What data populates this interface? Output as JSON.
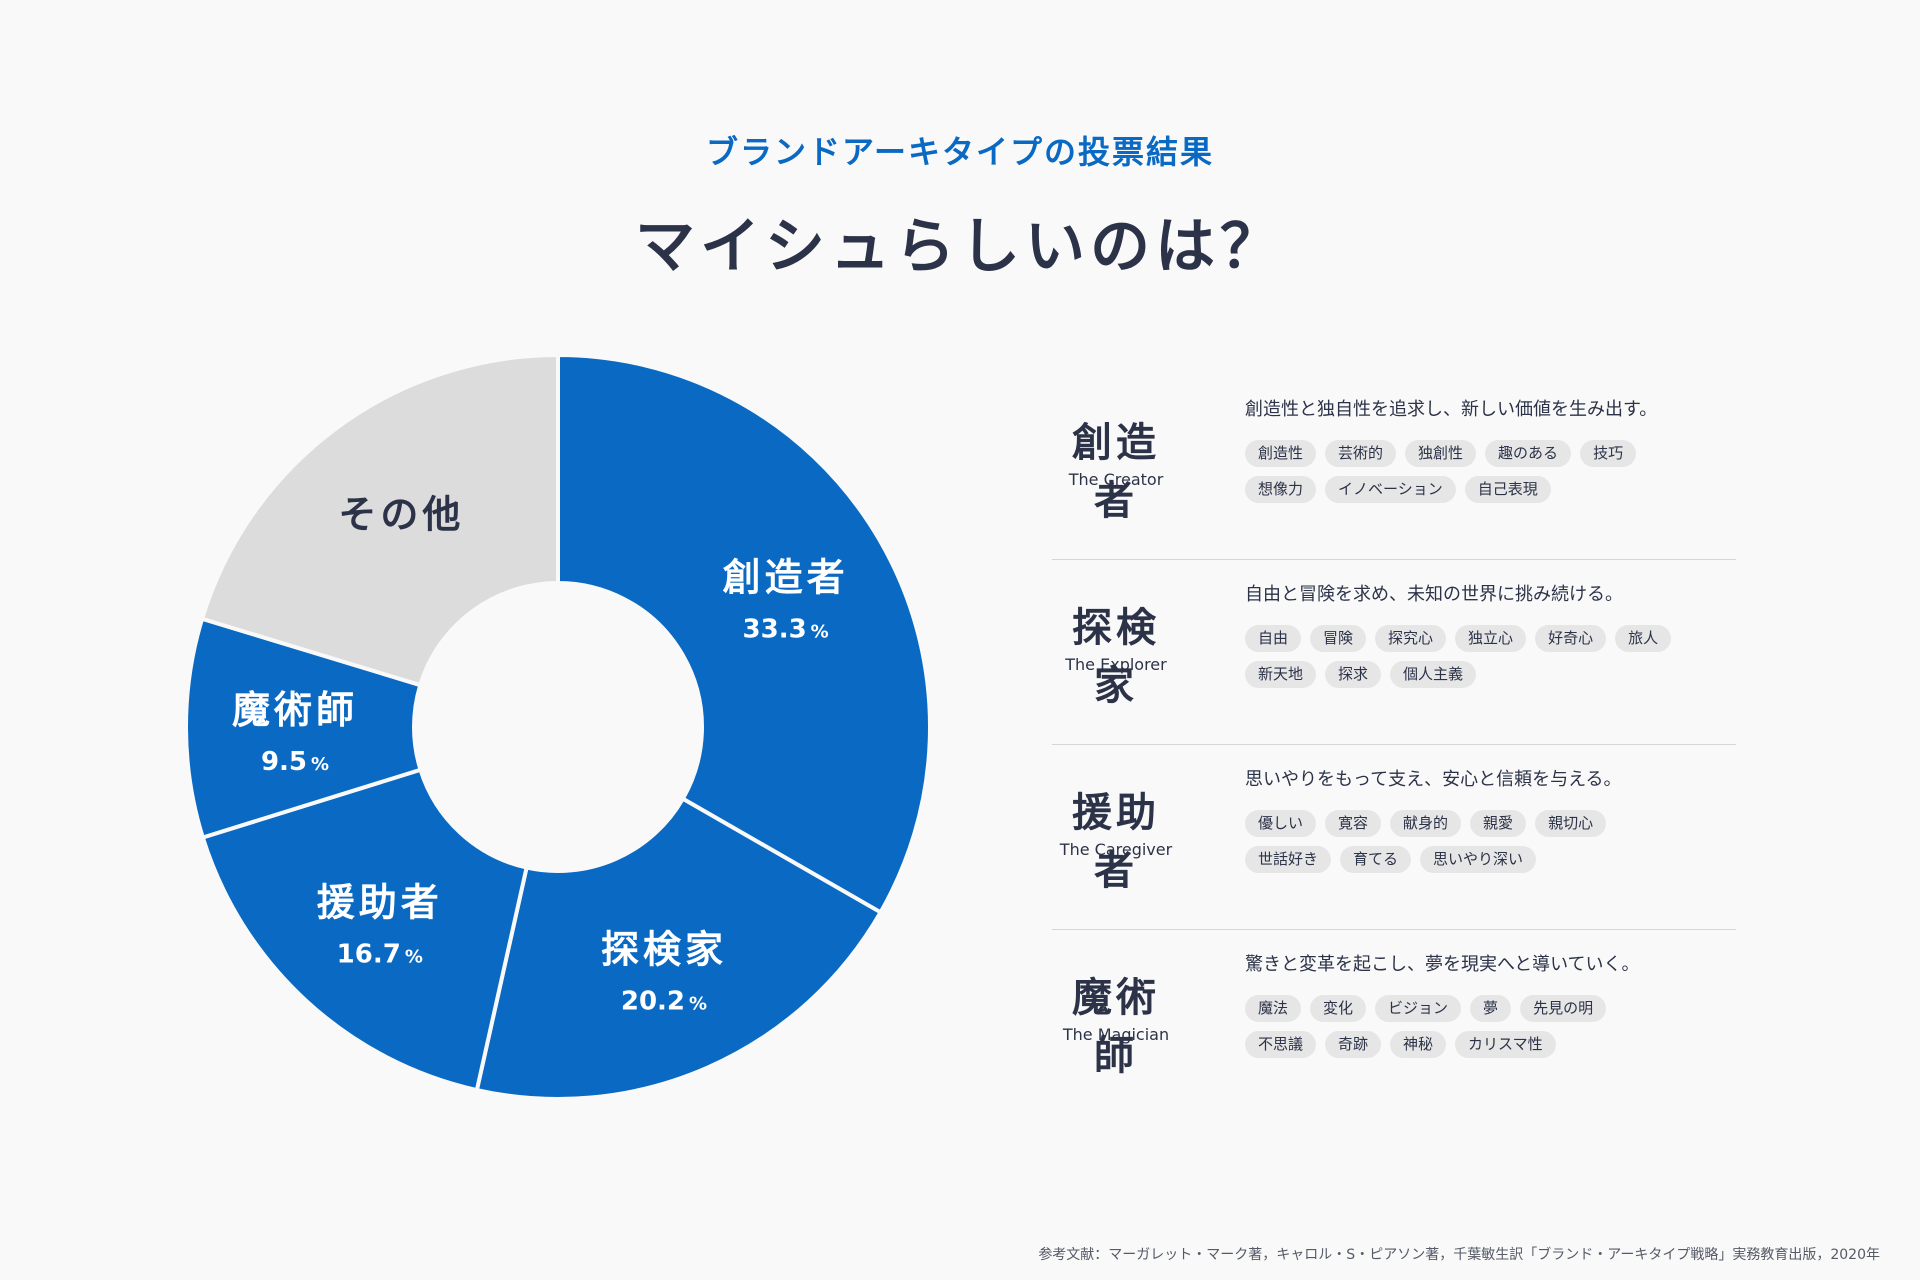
{
  "header": {
    "subtitle": "ブランドアーキタイプの投票結果",
    "title": "マイシュらしいのは？"
  },
  "chart_data": {
    "type": "pie",
    "donut": true,
    "slices": [
      {
        "label": "創造者",
        "value": 33.3,
        "value_label": "33.3",
        "unit": "%",
        "color": "#0969c3",
        "text_color": "#ffffff"
      },
      {
        "label": "探検家",
        "value": 20.2,
        "value_label": "20.2",
        "unit": "%",
        "color": "#0969c3",
        "text_color": "#ffffff"
      },
      {
        "label": "援助者",
        "value": 16.7,
        "value_label": "16.7",
        "unit": "%",
        "color": "#0969c3",
        "text_color": "#ffffff"
      },
      {
        "label": "魔術師",
        "value": 9.5,
        "value_label": "9.5",
        "unit": "%",
        "color": "#0969c3",
        "text_color": "#ffffff"
      },
      {
        "label": "その他",
        "value": 20.3,
        "value_label": "",
        "unit": "",
        "color": "#dcdcdc",
        "text_color": "#2c3348"
      }
    ]
  },
  "archetypes": [
    {
      "name": "創造者",
      "en": "The Creator",
      "desc": "創造性と独自性を追求し、新しい価値を生み出す。",
      "tags": [
        "創造性",
        "芸術的",
        "独創性",
        "趣のある",
        "技巧",
        "想像力",
        "イノベーション",
        "自己表現"
      ]
    },
    {
      "name": "探検家",
      "en": "The Explorer",
      "desc": "自由と冒険を求め、未知の世界に挑み続ける。",
      "tags": [
        "自由",
        "冒険",
        "探究心",
        "独立心",
        "好奇心",
        "旅人",
        "新天地",
        "探求",
        "個人主義"
      ]
    },
    {
      "name": "援助者",
      "en": "The Caregiver",
      "desc": "思いやりをもって支え、安心と信頼を与える。",
      "tags": [
        "優しい",
        "寛容",
        "献身的",
        "親愛",
        "親切心",
        "世話好き",
        "育てる",
        "思いやり深い"
      ]
    },
    {
      "name": "魔術師",
      "en": "The Magician",
      "desc": "驚きと変革を起こし、夢を現実へと導いていく。",
      "tags": [
        "魔法",
        "変化",
        "ビジョン",
        "夢",
        "先見の明",
        "不思議",
        "奇跡",
        "神秘",
        "カリスマ性"
      ]
    }
  ],
  "footnote": "参考文献：マーガレット・マーク著，キャロル・S・ピアソン著，千葉敏生訳「ブランド・アーキタイプ戦略」実務教育出版，2020年"
}
